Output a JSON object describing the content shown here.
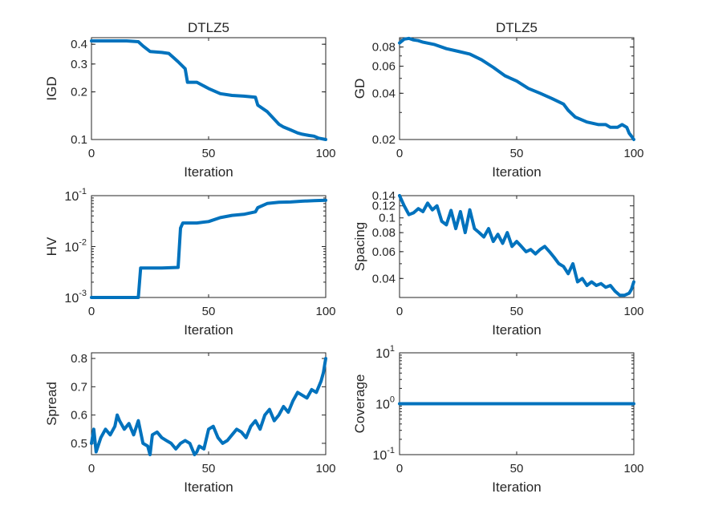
{
  "figure": {
    "background": "#ffffff",
    "line_color": "#0072BD",
    "axis_color": "#262626"
  },
  "chart_data": [
    {
      "type": "line",
      "id": "igd",
      "title": "DTLZ5",
      "xlabel": "Iteration",
      "ylabel": "IGD",
      "yscale": "log",
      "xlim": [
        0,
        100
      ],
      "ylim": [
        0.1,
        0.44
      ],
      "xticks": [
        0,
        50,
        100
      ],
      "xtick_labels": [
        "0",
        "50",
        "100"
      ],
      "yticks": [
        0.1,
        0.2,
        0.3,
        0.4
      ],
      "ytick_labels": [
        "0.1",
        "0.2",
        "0.3",
        "0.4"
      ],
      "x": [
        0,
        5,
        10,
        15,
        20,
        22,
        25,
        30,
        33,
        35,
        37,
        40,
        41,
        42,
        45,
        50,
        55,
        60,
        65,
        70,
        71,
        75,
        80,
        82,
        85,
        88,
        90,
        93,
        95,
        97,
        100
      ],
      "y": [
        0.42,
        0.42,
        0.42,
        0.42,
        0.415,
        0.39,
        0.36,
        0.355,
        0.35,
        0.33,
        0.31,
        0.28,
        0.23,
        0.23,
        0.23,
        0.21,
        0.195,
        0.19,
        0.188,
        0.185,
        0.165,
        0.15,
        0.125,
        0.12,
        0.115,
        0.11,
        0.108,
        0.106,
        0.105,
        0.102,
        0.1
      ]
    },
    {
      "type": "line",
      "id": "gd",
      "title": "DTLZ5",
      "xlabel": "Iteration",
      "ylabel": "GD",
      "yscale": "log",
      "xlim": [
        0,
        100
      ],
      "ylim": [
        0.02,
        0.092
      ],
      "xticks": [
        0,
        50,
        100
      ],
      "xtick_labels": [
        "0",
        "50",
        "100"
      ],
      "yticks": [
        0.02,
        0.04,
        0.06,
        0.08
      ],
      "ytick_labels": [
        "0.02",
        "0.04",
        "0.06",
        "0.08"
      ],
      "x": [
        0,
        2,
        4,
        6,
        8,
        10,
        15,
        20,
        25,
        30,
        35,
        40,
        45,
        50,
        55,
        60,
        65,
        70,
        72,
        75,
        80,
        85,
        88,
        90,
        93,
        95,
        97,
        98,
        99,
        100
      ],
      "y": [
        0.085,
        0.09,
        0.091,
        0.089,
        0.088,
        0.086,
        0.083,
        0.078,
        0.075,
        0.072,
        0.066,
        0.059,
        0.052,
        0.048,
        0.043,
        0.04,
        0.037,
        0.034,
        0.031,
        0.028,
        0.026,
        0.025,
        0.025,
        0.024,
        0.024,
        0.025,
        0.024,
        0.022,
        0.021,
        0.02
      ]
    },
    {
      "type": "line",
      "id": "hv",
      "title": "",
      "xlabel": "Iteration",
      "ylabel": "HV",
      "yscale": "log",
      "xlim": [
        0,
        100
      ],
      "ylim": [
        0.001,
        0.1
      ],
      "xticks": [
        0,
        50,
        100
      ],
      "xtick_labels": [
        "0",
        "50",
        "100"
      ],
      "yticks": [
        0.001,
        0.01,
        0.1
      ],
      "ytick_labels": [
        [
          "10",
          "-3"
        ],
        [
          "10",
          "-2"
        ],
        [
          "10",
          "-1"
        ]
      ],
      "x": [
        0,
        10,
        20,
        21,
        30,
        37,
        38,
        39,
        40,
        45,
        50,
        55,
        60,
        65,
        70,
        71,
        75,
        80,
        85,
        90,
        95,
        100
      ],
      "y": [
        0.001,
        0.001,
        0.001,
        0.0038,
        0.0038,
        0.0039,
        0.023,
        0.029,
        0.029,
        0.029,
        0.031,
        0.037,
        0.041,
        0.043,
        0.048,
        0.058,
        0.07,
        0.074,
        0.075,
        0.078,
        0.08,
        0.081
      ]
    },
    {
      "type": "line",
      "id": "spacing",
      "title": "",
      "xlabel": "Iteration",
      "ylabel": "Spacing",
      "yscale": "log",
      "xlim": [
        0,
        100
      ],
      "ylim": [
        0.03,
        0.14
      ],
      "xticks": [
        0,
        50,
        100
      ],
      "xtick_labels": [
        "0",
        "50",
        "100"
      ],
      "yticks": [
        0.04,
        0.06,
        0.08,
        0.1,
        0.12,
        0.14
      ],
      "ytick_labels": [
        "0.04",
        "0.06",
        "0.08",
        "0.1",
        "0.12",
        "0.14"
      ],
      "x": [
        0,
        2,
        4,
        6,
        8,
        10,
        12,
        14,
        16,
        18,
        20,
        22,
        24,
        26,
        28,
        30,
        32,
        34,
        36,
        38,
        40,
        42,
        44,
        46,
        48,
        50,
        52,
        54,
        56,
        58,
        60,
        62,
        64,
        66,
        68,
        70,
        72,
        74,
        76,
        78,
        80,
        82,
        84,
        86,
        88,
        90,
        92,
        94,
        96,
        98,
        99,
        100
      ],
      "y": [
        0.14,
        0.12,
        0.105,
        0.108,
        0.115,
        0.11,
        0.125,
        0.113,
        0.12,
        0.095,
        0.09,
        0.112,
        0.085,
        0.11,
        0.08,
        0.113,
        0.085,
        0.08,
        0.075,
        0.085,
        0.07,
        0.078,
        0.068,
        0.08,
        0.065,
        0.07,
        0.065,
        0.06,
        0.062,
        0.058,
        0.062,
        0.065,
        0.06,
        0.055,
        0.05,
        0.048,
        0.043,
        0.05,
        0.038,
        0.04,
        0.036,
        0.038,
        0.036,
        0.037,
        0.035,
        0.036,
        0.033,
        0.031,
        0.031,
        0.032,
        0.034,
        0.038
      ]
    },
    {
      "type": "line",
      "id": "spread",
      "title": "",
      "xlabel": "Iteration",
      "ylabel": "Spread",
      "yscale": "linear",
      "xlim": [
        0,
        100
      ],
      "ylim": [
        0.46,
        0.82
      ],
      "xticks": [
        0,
        50,
        100
      ],
      "xtick_labels": [
        "0",
        "50",
        "100"
      ],
      "yticks": [
        0.5,
        0.6,
        0.7,
        0.8
      ],
      "ytick_labels": [
        "0.5",
        "0.6",
        "0.7",
        "0.8"
      ],
      "x": [
        0,
        1,
        2,
        4,
        6,
        8,
        10,
        11,
        12,
        14,
        16,
        18,
        20,
        22,
        24,
        25,
        26,
        28,
        30,
        32,
        34,
        36,
        38,
        40,
        42,
        44,
        45,
        46,
        48,
        50,
        52,
        54,
        56,
        58,
        60,
        62,
        64,
        66,
        68,
        70,
        72,
        74,
        76,
        78,
        80,
        82,
        84,
        86,
        88,
        90,
        92,
        94,
        96,
        98,
        99,
        100
      ],
      "y": [
        0.5,
        0.55,
        0.47,
        0.52,
        0.55,
        0.53,
        0.56,
        0.6,
        0.58,
        0.55,
        0.57,
        0.53,
        0.58,
        0.5,
        0.49,
        0.46,
        0.53,
        0.54,
        0.52,
        0.51,
        0.5,
        0.48,
        0.5,
        0.51,
        0.5,
        0.46,
        0.47,
        0.49,
        0.48,
        0.55,
        0.56,
        0.52,
        0.5,
        0.51,
        0.53,
        0.55,
        0.54,
        0.52,
        0.56,
        0.58,
        0.55,
        0.6,
        0.62,
        0.58,
        0.6,
        0.63,
        0.61,
        0.65,
        0.68,
        0.67,
        0.66,
        0.69,
        0.68,
        0.72,
        0.75,
        0.8
      ]
    },
    {
      "type": "line",
      "id": "coverage",
      "title": "",
      "xlabel": "Iteration",
      "ylabel": "Coverage",
      "yscale": "log",
      "xlim": [
        0,
        100
      ],
      "ylim": [
        0.1,
        10
      ],
      "xticks": [
        0,
        50,
        100
      ],
      "xtick_labels": [
        "0",
        "50",
        "100"
      ],
      "yticks": [
        0.1,
        1,
        10
      ],
      "ytick_labels": [
        [
          "10",
          "-1"
        ],
        [
          "10",
          "0"
        ],
        [
          "10",
          "1"
        ]
      ],
      "x": [
        0,
        100
      ],
      "y": [
        1,
        1
      ]
    }
  ]
}
